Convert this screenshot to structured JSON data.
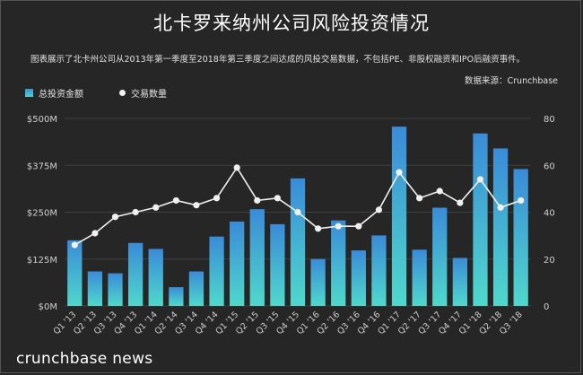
{
  "chart_data": {
    "type": "bar",
    "title": "北卡罗来纳州公司风险投资情况",
    "subtitle": "图表展示了北卡州公司从2013年第一季度至2018年第三季度之间达成的风投交易数据，不包括PE、非股权融资和IPO后融资事件。",
    "source": "数据来源：Crunchbase",
    "categories": [
      "Q1 '13",
      "Q2 '13",
      "Q3 '13",
      "Q4 '13",
      "Q1 '14",
      "Q2 '14",
      "Q3 '14",
      "Q4 '14",
      "Q1 '15",
      "Q2 '15",
      "Q3 '15",
      "Q4 '15",
      "Q1 '16",
      "Q2 '16",
      "Q3 '16",
      "Q4 '16",
      "Q1 '17",
      "Q2 '17",
      "Q3 '17",
      "Q4 '17",
      "Q1 '18",
      "Q2 '18",
      "Q3 '18"
    ],
    "series": [
      {
        "name": "总投资金额",
        "axis": "left",
        "type": "bar",
        "values": [
          175,
          92,
          87,
          168,
          152,
          50,
          92,
          185,
          225,
          258,
          218,
          340,
          125,
          228,
          148,
          188,
          478,
          150,
          262,
          128,
          460,
          420,
          365
        ]
      },
      {
        "name": "交易数量",
        "axis": "right",
        "type": "line",
        "values": [
          26,
          31,
          38,
          40,
          42,
          45,
          43,
          46,
          59,
          45,
          46,
          40,
          33,
          34,
          34,
          41,
          57,
          46,
          49,
          44,
          54,
          42,
          45
        ]
      }
    ],
    "y_left": {
      "min": 0,
      "max": 500,
      "ticks": [
        0,
        125,
        250,
        375,
        500
      ],
      "tick_labels": [
        "$0M",
        "$125M",
        "$250M",
        "$375M",
        "$500M"
      ]
    },
    "y_right": {
      "min": 0,
      "max": 80,
      "ticks": [
        0,
        20,
        40,
        60,
        80
      ],
      "tick_labels": [
        "0",
        "20",
        "40",
        "60",
        "80"
      ]
    },
    "grid": true,
    "legend_position": "top-left",
    "colors": {
      "bar_top": "#3a8bd8",
      "bar_bottom": "#50d8cc",
      "line": "#f0f0f0",
      "grid": "#3f3f3f",
      "axis_text": "#cfcfcf"
    }
  },
  "branding": {
    "logo_text": "crunchbase news"
  }
}
